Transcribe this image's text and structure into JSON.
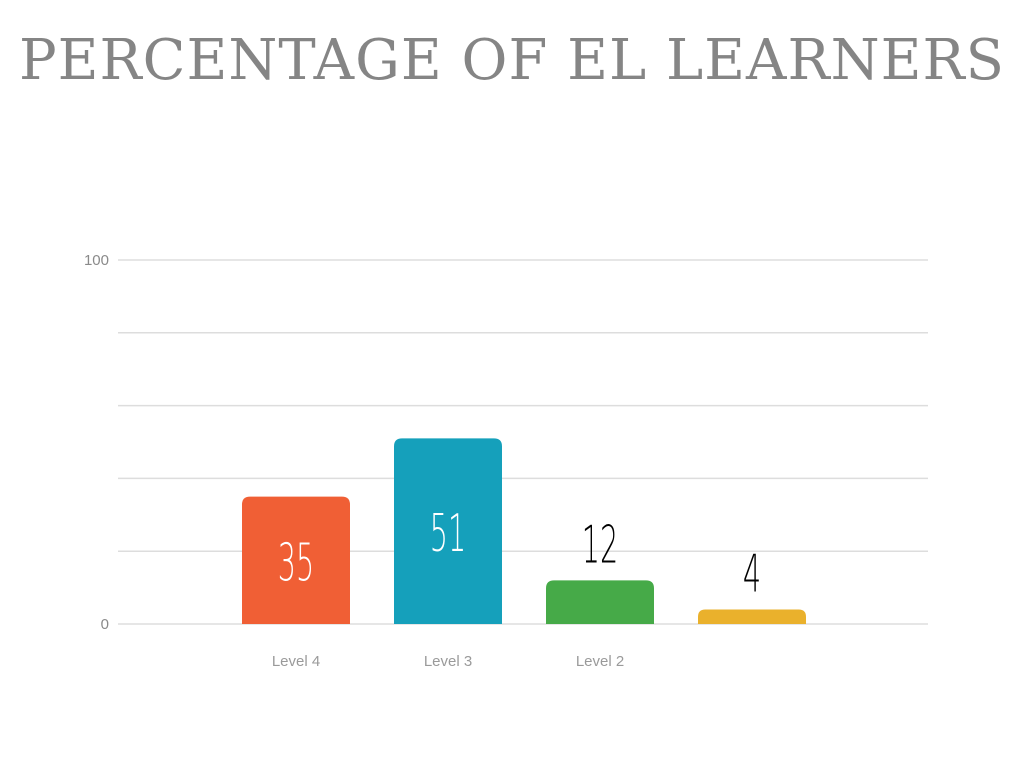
{
  "chart_data": {
    "type": "bar",
    "title": "PERCENTAGE OF EL LEARNERS",
    "categories": [
      "Level 4",
      "Level 3",
      "Level 2",
      ""
    ],
    "values": [
      35,
      51,
      12,
      4
    ],
    "colors": [
      "#f05f35",
      "#15a0bb",
      "#46aa48",
      "#eab12c"
    ],
    "ylim": [
      0,
      100
    ],
    "y_tick_labels": [
      "0",
      "100"
    ],
    "gridlines": true,
    "value_label_colors": [
      "#ffffff",
      "#ffffff",
      "#000000",
      "#000000"
    ]
  }
}
